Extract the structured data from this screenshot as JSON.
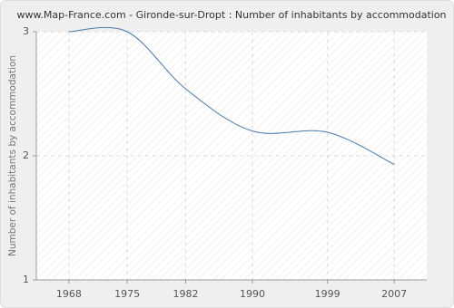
{
  "chart_data": {
    "type": "line",
    "title": "www.Map-France.com - Gironde-sur-Dropt : Number of inhabitants by accommodation",
    "y_label": "Number of inhabitants by accommodation",
    "x": [
      1968,
      1975,
      1982,
      1990,
      1999,
      2007
    ],
    "series": [
      {
        "name": "Gironde-sur-Dropt",
        "color": "#4a78a8",
        "values": [
          3,
          3,
          2.54,
          2.2,
          2.19,
          1.93
        ]
      }
    ],
    "xlim": [
      1964.1,
      2010.9
    ],
    "xticks": [
      1968,
      1975,
      1982,
      1990,
      1999,
      2007
    ],
    "ylim": [
      1,
      3
    ],
    "yticks": [
      1,
      2,
      3
    ],
    "grid": true
  }
}
